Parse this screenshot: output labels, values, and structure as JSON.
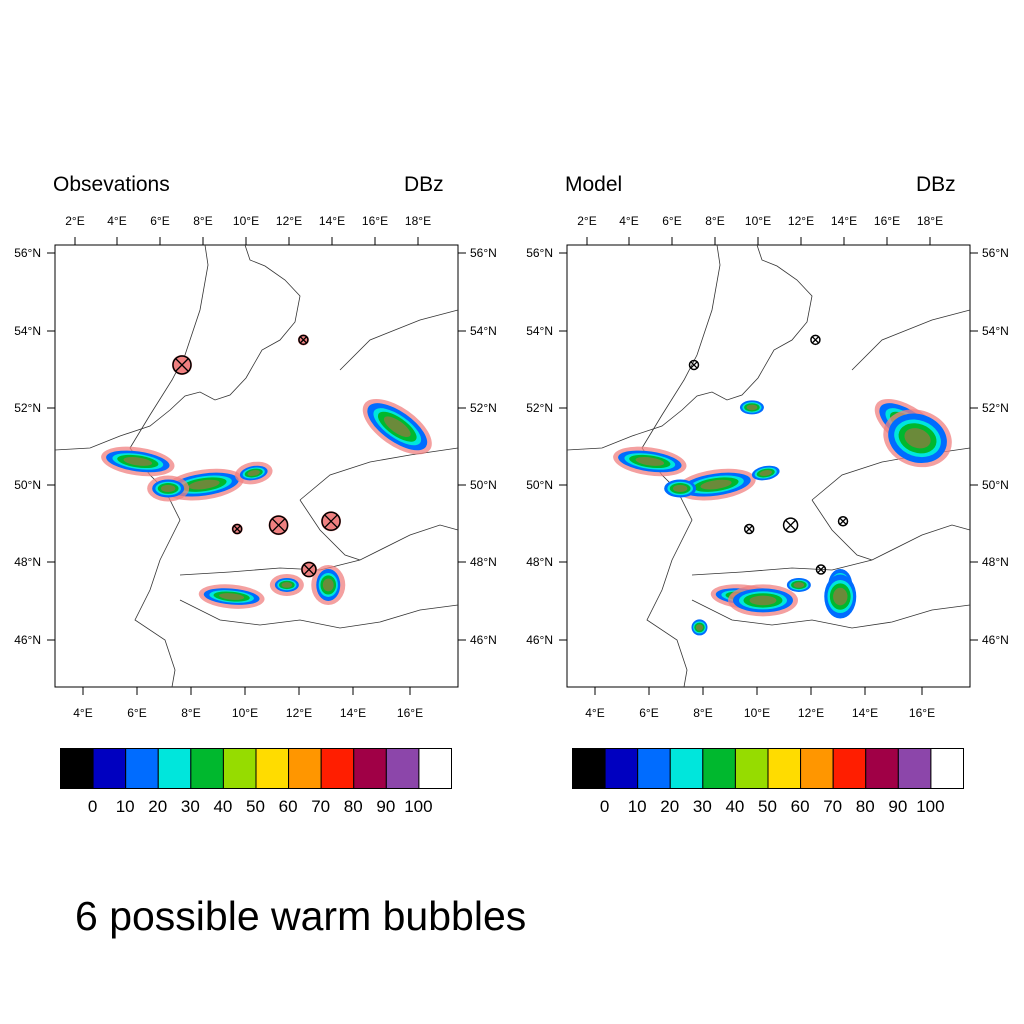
{
  "panels": [
    {
      "title": "Obsevations",
      "units": "DBz",
      "top_lon_labels": [
        "2°E",
        "4°E",
        "6°E",
        "8°E",
        "10°E",
        "12°E",
        "14°E",
        "16°E",
        "18°E"
      ],
      "bottom_lon_labels": [
        "4°E",
        "6°E",
        "8°E",
        "10°E",
        "12°E",
        "14°E",
        "16°E"
      ],
      "left_lat_labels": [
        "56°N",
        "54°N",
        "52°N",
        "50°N",
        "48°N",
        "46°N"
      ],
      "right_lat_labels": [
        "56°N",
        "54°N",
        "52°N",
        "50°N",
        "48°N",
        "46°N"
      ],
      "bubble_markers": [
        {
          "lon": 7.5,
          "lat": 53.1,
          "size": "large"
        },
        {
          "lon": 11.9,
          "lat": 53.75,
          "size": "small"
        },
        {
          "lon": 9.5,
          "lat": 48.85,
          "size": "small"
        },
        {
          "lon": 11.0,
          "lat": 48.95,
          "size": "large"
        },
        {
          "lon": 12.9,
          "lat": 49.05,
          "size": "large"
        },
        {
          "lon": 12.1,
          "lat": 47.8,
          "size": "medium"
        }
      ]
    },
    {
      "title": "Model",
      "units": "DBz",
      "top_lon_labels": [
        "2°E",
        "4°E",
        "6°E",
        "8°E",
        "10°E",
        "12°E",
        "14°E",
        "16°E",
        "18°E"
      ],
      "bottom_lon_labels": [
        "4°E",
        "6°E",
        "8°E",
        "10°E",
        "12°E",
        "14°E",
        "16°E"
      ],
      "left_lat_labels": [
        "56°N",
        "54°N",
        "52°N",
        "50°N",
        "48°N",
        "46°N"
      ],
      "right_lat_labels": [
        "56°N",
        "54°N",
        "52°N",
        "50°N",
        "48°N",
        "46°N"
      ],
      "bubble_markers": [
        {
          "lon": 7.5,
          "lat": 53.1,
          "size": "small"
        },
        {
          "lon": 11.9,
          "lat": 53.75,
          "size": "small"
        },
        {
          "lon": 9.5,
          "lat": 48.85,
          "size": "small"
        },
        {
          "lon": 11.0,
          "lat": 48.95,
          "size": "medium"
        },
        {
          "lon": 12.9,
          "lat": 49.05,
          "size": "small"
        },
        {
          "lon": 12.1,
          "lat": 47.8,
          "size": "small"
        }
      ]
    }
  ],
  "colorbar": {
    "colors": [
      "#000000",
      "#0000c0",
      "#006cff",
      "#00e6dc",
      "#00b82e",
      "#96dc00",
      "#ffdc00",
      "#ff9600",
      "#ff1e00",
      "#a00046",
      "#8c46aa",
      "#ffffff"
    ],
    "labels": [
      "0",
      "10",
      "20",
      "30",
      "40",
      "50",
      "60",
      "70",
      "80",
      "90",
      "100"
    ]
  },
  "footer": "6 possible warm bubbles",
  "colors": {
    "halo": "#f08080",
    "outline": "#000000"
  }
}
